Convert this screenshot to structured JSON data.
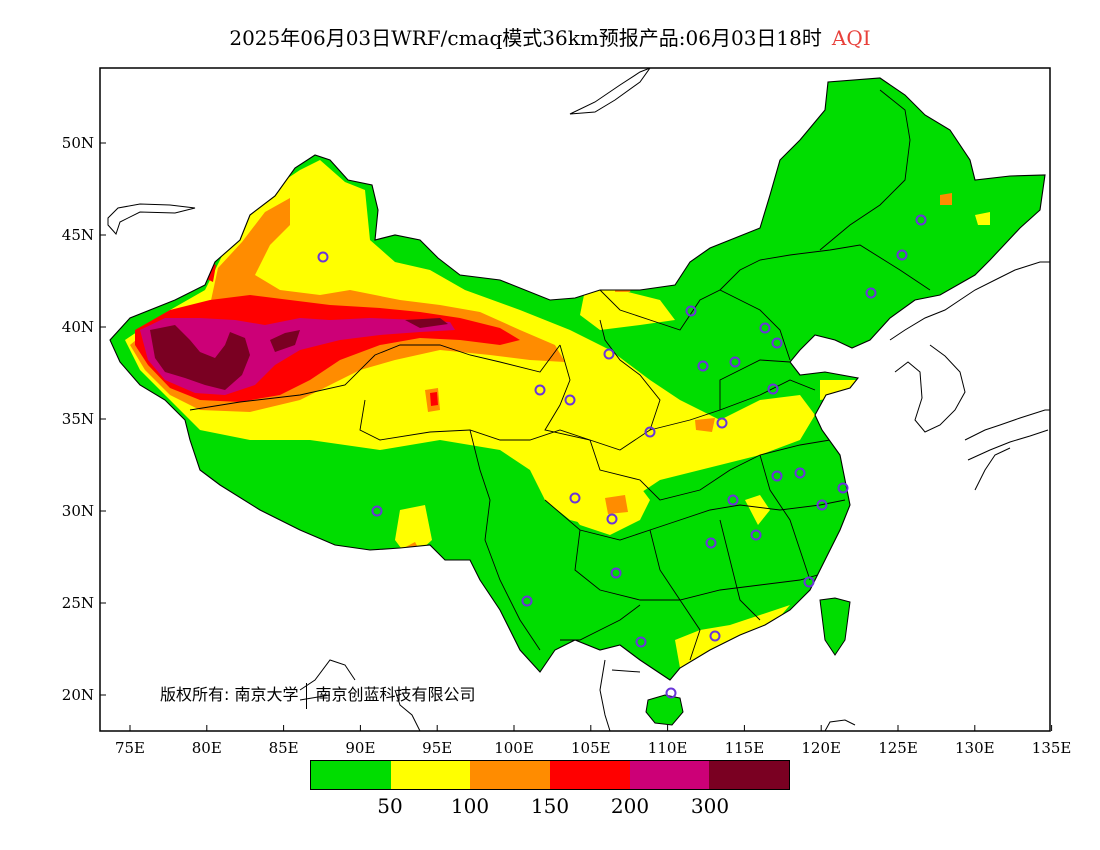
{
  "title": {
    "main": "2025年06月03日WRF/cmaq模式36km预报产品:06月03日18时",
    "variable": "AQI"
  },
  "axes": {
    "x_ticks": [
      "75E",
      "80E",
      "85E",
      "90E",
      "95E",
      "100E",
      "105E",
      "110E",
      "115E",
      "120E",
      "125E",
      "130E",
      "135E"
    ],
    "y_ticks": [
      "50N",
      "45N",
      "40N",
      "35N",
      "30N",
      "25N",
      "20N"
    ]
  },
  "copyright": {
    "text": "版权所有: 南京大学",
    "text2": "南京创蓝科技有限公司"
  },
  "colorbar": {
    "colors": [
      "#00dd00",
      "#ffff00",
      "#ff8c00",
      "#ff0000",
      "#cc0077",
      "#7a0022"
    ],
    "labels": [
      "50",
      "100",
      "150",
      "200",
      "300"
    ]
  },
  "map": {
    "land_color": "#00dd00",
    "station_color": "#6a35d9"
  }
}
